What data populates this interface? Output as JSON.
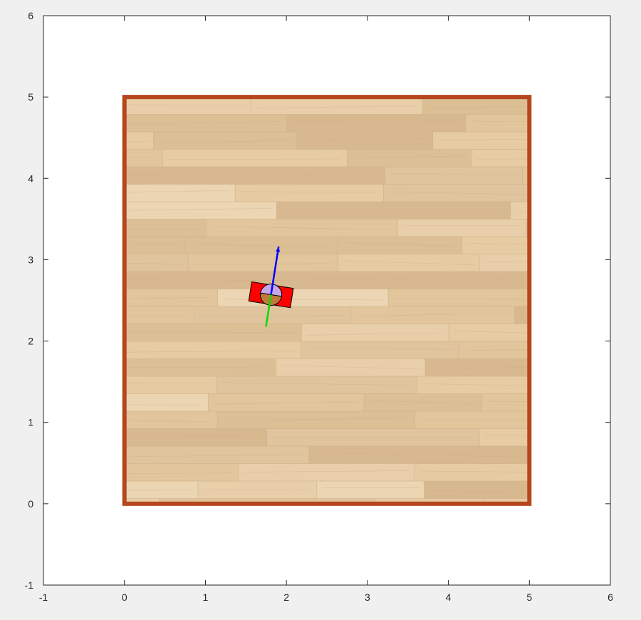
{
  "colors": {
    "figure_bg": "#f0f0f0",
    "axes_bg": "#ffffff",
    "axis_line": "#262626",
    "arena_border": "#b5461e",
    "floor_base": "#e3c8a1",
    "robot_body": "#ff0000",
    "robot_wheel": "#c07a3a",
    "robot_top": "#c7a6e8",
    "heading_arrow": "#0000ff",
    "side_arrow": "#00dd00"
  },
  "chart_data": {
    "type": "scatter",
    "title": "",
    "xlabel": "",
    "ylabel": "",
    "xlim": [
      -1,
      6
    ],
    "ylim": [
      -1,
      6
    ],
    "grid": false,
    "legend": "none",
    "xticks": [
      "-1",
      "0",
      "1",
      "2",
      "3",
      "4",
      "5",
      "6"
    ],
    "yticks": [
      "-1",
      "0",
      "1",
      "2",
      "3",
      "4",
      "5",
      "6"
    ],
    "arena": {
      "x": [
        0,
        5
      ],
      "y": [
        0,
        5
      ],
      "texture": "wood-floor"
    },
    "robot": {
      "x": 1.81,
      "y": 2.57,
      "heading_deg": 81,
      "body_length": 0.52,
      "body_width": 0.24,
      "heading_arrow_length": 0.6,
      "side_arrow_length": 0.4
    }
  }
}
